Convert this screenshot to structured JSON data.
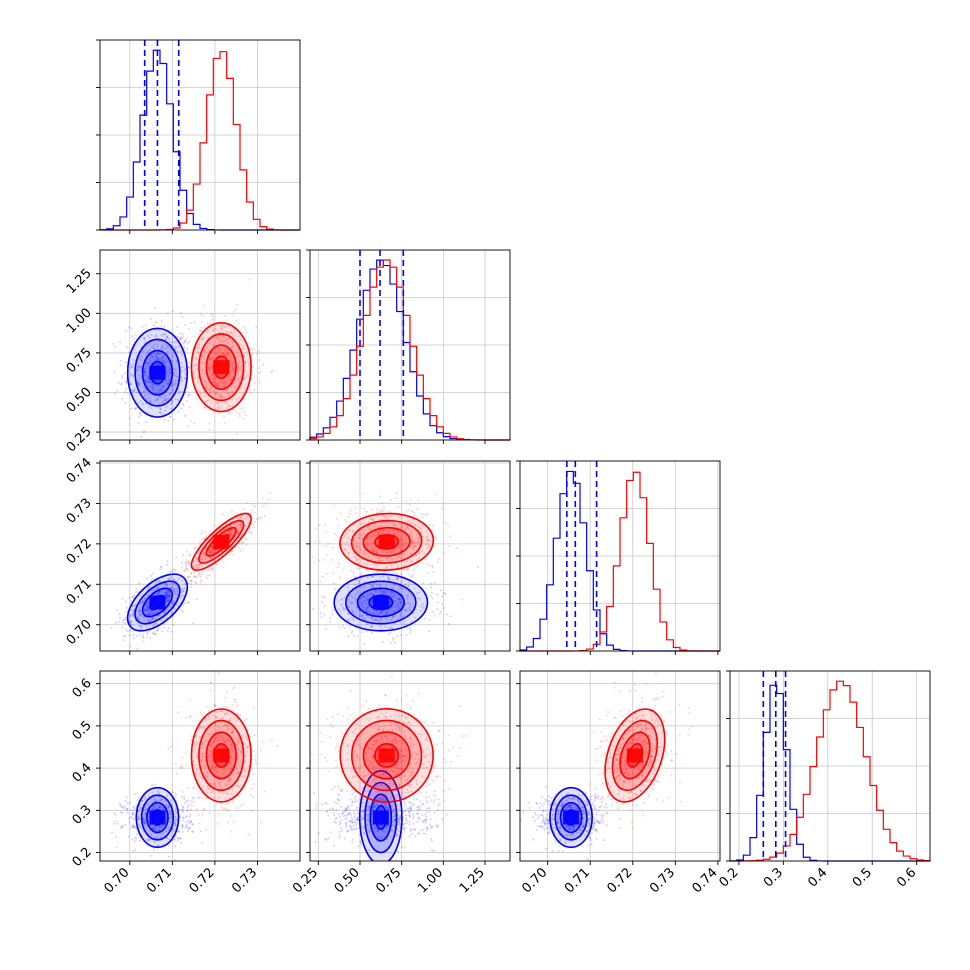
{
  "chart_data": {
    "type": "corner",
    "params": [
      {
        "id": "p0",
        "range": [
          0.693,
          0.74
        ],
        "ticks": [
          0.7,
          0.71,
          0.72,
          0.73
        ],
        "tick_labels": [
          "0.70",
          "0.71",
          "0.72",
          "0.73"
        ]
      },
      {
        "id": "p1",
        "range": [
          0.2,
          1.4
        ],
        "ticks": [
          0.25,
          0.5,
          0.75,
          1.0,
          1.25
        ],
        "tick_labels": [
          "0.25",
          "0.50",
          "0.75",
          "1.00",
          "1.25"
        ]
      },
      {
        "id": "p2",
        "range": [
          0.6935,
          0.7405
        ],
        "ticks": [
          0.7,
          0.71,
          0.72,
          0.73,
          0.74
        ],
        "tick_labels": [
          "0.70",
          "0.71",
          "0.72",
          "0.73",
          "0.74"
        ]
      },
      {
        "id": "p3",
        "range": [
          0.18,
          0.63
        ],
        "ticks": [
          0.2,
          0.3,
          0.4,
          0.5,
          0.6
        ],
        "tick_labels": [
          "0.2",
          "0.3",
          "0.4",
          "0.5",
          "0.6"
        ]
      }
    ],
    "series": [
      {
        "color": "#0000ff",
        "mean": [
          0.7065,
          0.625,
          0.7055,
          0.283
        ],
        "sd": [
          0.0035,
          0.14,
          0.0035,
          0.025
        ],
        "quantiles": [
          [
            0.7035,
            0.7065,
            0.7115
          ],
          [
            0.5,
            0.62,
            0.76
          ],
          [
            0.7045,
            0.7065,
            0.7115
          ],
          [
            0.255,
            0.283,
            0.305
          ]
        ]
      },
      {
        "color": "#ff0000",
        "mean": [
          0.7215,
          0.66,
          0.7205,
          0.43
        ],
        "sd": [
          0.0035,
          0.14,
          0.0035,
          0.055
        ]
      }
    ],
    "correlations": {
      "blue": {
        "0-2": 0.55
      },
      "red": {
        "0-2": 0.82,
        "1-2": 0.05,
        "2-3": 0.35
      }
    },
    "grid": true,
    "quantile_lines": "blue dashed",
    "contour_levels": [
      0.5,
      1.0,
      1.5,
      2.0
    ]
  }
}
